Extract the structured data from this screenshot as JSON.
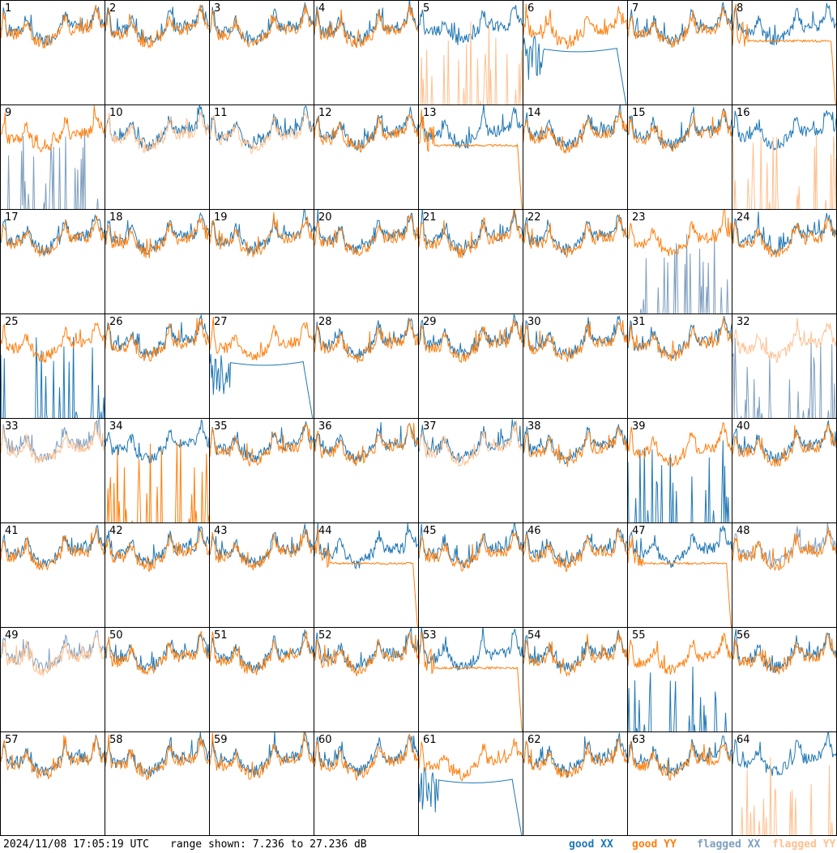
{
  "timestamp": "2024/11/08 17:05:19 UTC",
  "range_text": "range shown: 7.236 to 27.236 dB",
  "legend": [
    {
      "label": "good XX",
      "color": "#1f77b4"
    },
    {
      "label": "good YY",
      "color": "#ff7f0e"
    },
    {
      "label": "flagged XX",
      "color": "#7f9fbf"
    },
    {
      "label": "flagged YY",
      "color": "#ffc08f"
    }
  ],
  "colors": {
    "good_xx": "#1f77b4",
    "good_yy": "#ff7f0e",
    "flagged_xx": "#7f9fbf",
    "flagged_yy": "#ffc08f"
  },
  "chart_data": {
    "type": "line",
    "title": "",
    "xlabel": "",
    "ylabel": "",
    "ylim": [
      7.236,
      27.236
    ],
    "grid": false,
    "layout": "8x8 small multiples",
    "series_names": [
      "good XX",
      "good YY",
      "flagged XX",
      "flagged YY"
    ],
    "panels": [
      {
        "id": 1,
        "xx": "good",
        "yy": "good",
        "xx_shape": "normal",
        "yy_shape": "normal"
      },
      {
        "id": 2,
        "xx": "good",
        "yy": "good",
        "xx_shape": "normal",
        "yy_shape": "normal"
      },
      {
        "id": 3,
        "xx": "good",
        "yy": "good",
        "xx_shape": "normal",
        "yy_shape": "normal"
      },
      {
        "id": 4,
        "xx": "good",
        "yy": "good",
        "xx_shape": "normal",
        "yy_shape": "normal"
      },
      {
        "id": 5,
        "xx": "good",
        "yy": "flagged",
        "xx_shape": "normal",
        "yy_shape": "spikes"
      },
      {
        "id": 6,
        "xx": "good",
        "yy": "good",
        "xx_shape": "dropoff",
        "yy_shape": "normal"
      },
      {
        "id": 7,
        "xx": "good",
        "yy": "good",
        "xx_shape": "normal",
        "yy_shape": "normal"
      },
      {
        "id": 8,
        "xx": "good",
        "yy": "good",
        "xx_shape": "normal",
        "yy_shape": "flat"
      },
      {
        "id": 9,
        "xx": "flagged",
        "yy": "good",
        "xx_shape": "spikes",
        "yy_shape": "normal"
      },
      {
        "id": 10,
        "xx": "good",
        "yy": "flagged",
        "xx_shape": "normal",
        "yy_shape": "normal"
      },
      {
        "id": 11,
        "xx": "good",
        "yy": "flagged",
        "xx_shape": "normal",
        "yy_shape": "normal"
      },
      {
        "id": 12,
        "xx": "good",
        "yy": "good",
        "xx_shape": "normal",
        "yy_shape": "normal"
      },
      {
        "id": 13,
        "xx": "good",
        "yy": "good",
        "xx_shape": "normal",
        "yy_shape": "flat"
      },
      {
        "id": 14,
        "xx": "good",
        "yy": "good",
        "xx_shape": "normal",
        "yy_shape": "normal"
      },
      {
        "id": 15,
        "xx": "good",
        "yy": "good",
        "xx_shape": "normal",
        "yy_shape": "normal"
      },
      {
        "id": 16,
        "xx": "good",
        "yy": "flagged",
        "xx_shape": "normal",
        "yy_shape": "spikes"
      },
      {
        "id": 17,
        "xx": "good",
        "yy": "good",
        "xx_shape": "normal",
        "yy_shape": "normal"
      },
      {
        "id": 18,
        "xx": "good",
        "yy": "good",
        "xx_shape": "normal",
        "yy_shape": "normal"
      },
      {
        "id": 19,
        "xx": "good",
        "yy": "good",
        "xx_shape": "normal",
        "yy_shape": "normal"
      },
      {
        "id": 20,
        "xx": "good",
        "yy": "good",
        "xx_shape": "normal",
        "yy_shape": "normal"
      },
      {
        "id": 21,
        "xx": "good",
        "yy": "good",
        "xx_shape": "normal",
        "yy_shape": "normal"
      },
      {
        "id": 22,
        "xx": "good",
        "yy": "good",
        "xx_shape": "normal",
        "yy_shape": "normal"
      },
      {
        "id": 23,
        "xx": "flagged",
        "yy": "good",
        "xx_shape": "spikes",
        "yy_shape": "normal"
      },
      {
        "id": 24,
        "xx": "good",
        "yy": "good",
        "xx_shape": "normal",
        "yy_shape": "normal"
      },
      {
        "id": 25,
        "xx": "good",
        "yy": "good",
        "xx_shape": "spikes",
        "yy_shape": "normal"
      },
      {
        "id": 26,
        "xx": "good",
        "yy": "good",
        "xx_shape": "normal",
        "yy_shape": "normal"
      },
      {
        "id": 27,
        "xx": "good",
        "yy": "good",
        "xx_shape": "dropoff",
        "yy_shape": "normal"
      },
      {
        "id": 28,
        "xx": "good",
        "yy": "good",
        "xx_shape": "normal",
        "yy_shape": "normal"
      },
      {
        "id": 29,
        "xx": "good",
        "yy": "good",
        "xx_shape": "normal",
        "yy_shape": "normal"
      },
      {
        "id": 30,
        "xx": "good",
        "yy": "good",
        "xx_shape": "normal",
        "yy_shape": "normal"
      },
      {
        "id": 31,
        "xx": "good",
        "yy": "good",
        "xx_shape": "normal",
        "yy_shape": "normal"
      },
      {
        "id": 32,
        "xx": "flagged",
        "yy": "flagged",
        "xx_shape": "spikes",
        "yy_shape": "normal"
      },
      {
        "id": 33,
        "xx": "flagged",
        "yy": "flagged",
        "xx_shape": "normal",
        "yy_shape": "normal"
      },
      {
        "id": 34,
        "xx": "good",
        "yy": "good",
        "xx_shape": "normal",
        "yy_shape": "spikes"
      },
      {
        "id": 35,
        "xx": "good",
        "yy": "good",
        "xx_shape": "normal",
        "yy_shape": "normal"
      },
      {
        "id": 36,
        "xx": "good",
        "yy": "good",
        "xx_shape": "normal",
        "yy_shape": "normal"
      },
      {
        "id": 37,
        "xx": "good",
        "yy": "flagged",
        "xx_shape": "normal",
        "yy_shape": "normal"
      },
      {
        "id": 38,
        "xx": "good",
        "yy": "good",
        "xx_shape": "normal",
        "yy_shape": "normal"
      },
      {
        "id": 39,
        "xx": "good",
        "yy": "good",
        "xx_shape": "spikes",
        "yy_shape": "normal"
      },
      {
        "id": 40,
        "xx": "good",
        "yy": "good",
        "xx_shape": "normal",
        "yy_shape": "normal"
      },
      {
        "id": 41,
        "xx": "good",
        "yy": "good",
        "xx_shape": "normal",
        "yy_shape": "normal"
      },
      {
        "id": 42,
        "xx": "good",
        "yy": "good",
        "xx_shape": "normal",
        "yy_shape": "normal"
      },
      {
        "id": 43,
        "xx": "good",
        "yy": "good",
        "xx_shape": "normal",
        "yy_shape": "normal"
      },
      {
        "id": 44,
        "xx": "good",
        "yy": "good",
        "xx_shape": "normal",
        "yy_shape": "flat"
      },
      {
        "id": 45,
        "xx": "good",
        "yy": "good",
        "xx_shape": "normal",
        "yy_shape": "normal"
      },
      {
        "id": 46,
        "xx": "good",
        "yy": "good",
        "xx_shape": "normal",
        "yy_shape": "normal"
      },
      {
        "id": 47,
        "xx": "good",
        "yy": "good",
        "xx_shape": "normal",
        "yy_shape": "flat"
      },
      {
        "id": 48,
        "xx": "flagged",
        "yy": "good",
        "xx_shape": "normal",
        "yy_shape": "normal"
      },
      {
        "id": 49,
        "xx": "flagged",
        "yy": "flagged",
        "xx_shape": "normal",
        "yy_shape": "normal"
      },
      {
        "id": 50,
        "xx": "good",
        "yy": "good",
        "xx_shape": "normal",
        "yy_shape": "normal"
      },
      {
        "id": 51,
        "xx": "good",
        "yy": "good",
        "xx_shape": "normal",
        "yy_shape": "normal"
      },
      {
        "id": 52,
        "xx": "good",
        "yy": "good",
        "xx_shape": "normal",
        "yy_shape": "normal"
      },
      {
        "id": 53,
        "xx": "good",
        "yy": "good",
        "xx_shape": "normal",
        "yy_shape": "flat"
      },
      {
        "id": 54,
        "xx": "good",
        "yy": "good",
        "xx_shape": "normal",
        "yy_shape": "normal"
      },
      {
        "id": 55,
        "xx": "good",
        "yy": "good",
        "xx_shape": "spikes",
        "yy_shape": "normal"
      },
      {
        "id": 56,
        "xx": "good",
        "yy": "good",
        "xx_shape": "normal",
        "yy_shape": "normal"
      },
      {
        "id": 57,
        "xx": "good",
        "yy": "good",
        "xx_shape": "normal",
        "yy_shape": "normal"
      },
      {
        "id": 58,
        "xx": "good",
        "yy": "good",
        "xx_shape": "normal",
        "yy_shape": "normal"
      },
      {
        "id": 59,
        "xx": "good",
        "yy": "good",
        "xx_shape": "normal",
        "yy_shape": "normal"
      },
      {
        "id": 60,
        "xx": "good",
        "yy": "good",
        "xx_shape": "normal",
        "yy_shape": "normal"
      },
      {
        "id": 61,
        "xx": "good",
        "yy": "good",
        "xx_shape": "dropoff",
        "yy_shape": "normal"
      },
      {
        "id": 62,
        "xx": "good",
        "yy": "good",
        "xx_shape": "normal",
        "yy_shape": "normal"
      },
      {
        "id": 63,
        "xx": "good",
        "yy": "good",
        "xx_shape": "normal",
        "yy_shape": "normal"
      },
      {
        "id": 64,
        "xx": "good",
        "yy": "flagged",
        "xx_shape": "normal",
        "yy_shape": "spikes"
      }
    ]
  }
}
